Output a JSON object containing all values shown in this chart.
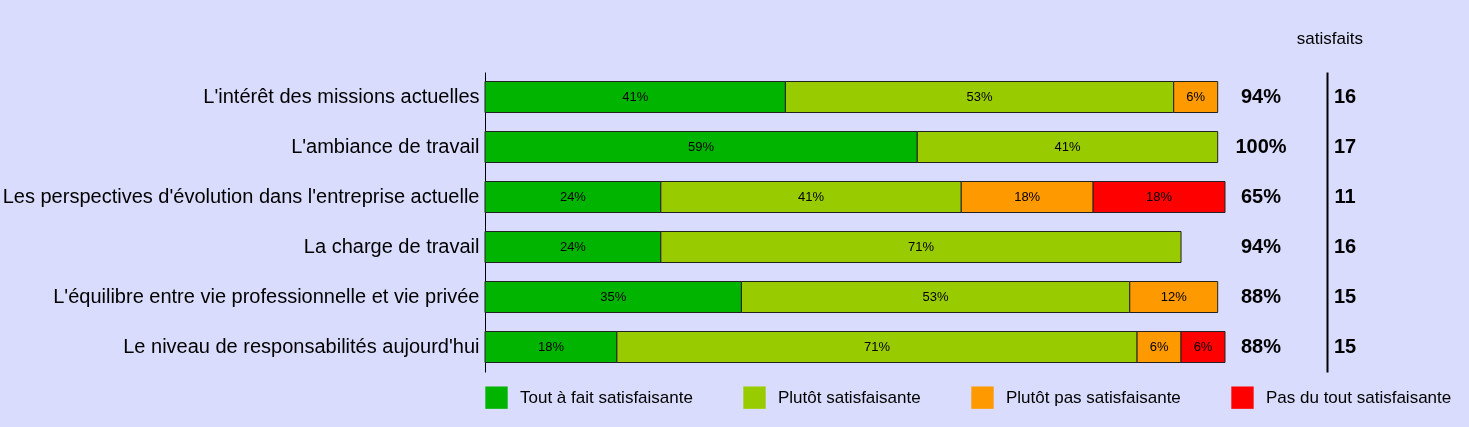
{
  "chart_data": {
    "type": "bar",
    "orientation": "horizontal",
    "stacked": true,
    "legend": "bottom",
    "categories": [
      "L'intérêt des missions actuelles",
      "L'ambiance de travail",
      "Les perspectives d'évolution dans l'entreprise actuelle",
      "La charge de travail",
      "L'équilibre entre vie professionnelle et vie privée",
      "Le niveau de responsabilités aujourd'hui"
    ],
    "series": [
      {
        "name": "Tout à fait satisfaisante",
        "color": "#00b400",
        "values": [
          41,
          59,
          24,
          24,
          35,
          18
        ],
        "value_labels": [
          "41%",
          "59%",
          "24%",
          "24%",
          "35%",
          "18%"
        ]
      },
      {
        "name": "Plutôt satisfaisante",
        "color": "#99cc00",
        "values": [
          53,
          41,
          41,
          71,
          53,
          71
        ],
        "value_labels": [
          "53%",
          "41%",
          "41%",
          "71%",
          "53%",
          "71%"
        ]
      },
      {
        "name": "Plutôt pas satisfaisante",
        "color": "#ff9900",
        "values": [
          6,
          null,
          18,
          null,
          12,
          6
        ],
        "value_labels": [
          "6%",
          null,
          "18%",
          null,
          "12%",
          "6%"
        ]
      },
      {
        "name": "Pas du tout satisfaisante",
        "color": "#ff0000",
        "values": [
          null,
          null,
          18,
          null,
          null,
          6
        ],
        "value_labels": [
          null,
          null,
          "18%",
          null,
          null,
          "6%"
        ]
      }
    ],
    "annotations": [
      "satisfaits",
      "94%",
      "100%",
      "65%",
      "94%",
      "88%",
      "88%",
      "16",
      "17",
      "11",
      "16",
      "15",
      "15"
    ]
  }
}
